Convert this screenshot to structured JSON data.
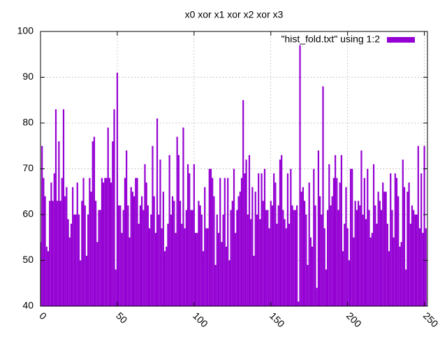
{
  "chart_data": {
    "type": "bar",
    "title": "x0 xor x1 xor x2 xor x3",
    "series": [
      {
        "name": "\"hist_fold.txt\" using 1:2",
        "color": "#9400d3",
        "values": [
          54,
          75,
          68,
          64,
          53,
          52,
          63,
          67,
          63,
          69,
          83,
          63,
          76,
          63,
          68,
          83,
          64,
          66,
          59,
          55,
          58,
          66,
          60,
          60,
          67,
          60,
          50,
          63,
          68,
          62,
          51,
          60,
          68,
          65,
          76,
          77,
          63,
          54,
          61,
          61,
          68,
          67,
          68,
          68,
          79,
          68,
          67,
          76,
          83,
          48,
          91,
          62,
          62,
          56,
          61,
          68,
          74,
          62,
          55,
          66,
          65,
          64,
          68,
          68,
          58,
          62,
          64,
          61,
          71,
          67,
          62,
          57,
          60,
          75,
          64,
          56,
          81,
          60,
          72,
          57,
          65,
          52,
          53,
          58,
          73,
          60,
          64,
          63,
          56,
          77,
          73,
          63,
          58,
          79,
          57,
          61,
          71,
          69,
          61,
          61,
          71,
          56,
          56,
          63,
          62,
          60,
          52,
          66,
          57,
          57,
          70,
          70,
          68,
          64,
          49,
          60,
          56,
          68,
          54,
          60,
          68,
          53,
          68,
          50,
          61,
          63,
          70,
          56,
          61,
          64,
          65,
          68,
          85,
          69,
          72,
          60,
          73,
          59,
          66,
          51,
          65,
          60,
          69,
          59,
          69,
          63,
          70,
          61,
          61,
          57,
          63,
          62,
          69,
          67,
          58,
          62,
          72,
          73,
          61,
          59,
          57,
          69,
          58,
          70,
          62,
          61,
          61,
          62,
          41,
          97,
          65,
          66,
          63,
          60,
          49,
          67,
          55,
          53,
          70,
          62,
          44,
          74,
          64,
          60,
          88,
          57,
          48,
          61,
          71,
          62,
          64,
          68,
          73,
          68,
          61,
          67,
          73,
          52,
          58,
          66,
          57,
          50,
          70,
          70,
          55,
          63,
          61,
          63,
          62,
          74,
          60,
          68,
          59,
          70,
          61,
          55,
          56,
          71,
          62,
          58,
          65,
          63,
          61,
          67,
          65,
          65,
          58,
          52,
          69,
          61,
          55,
          69,
          68,
          64,
          53,
          54,
          72,
          66,
          48,
          65,
          67,
          58,
          62,
          61,
          60,
          60,
          75,
          57,
          69,
          56,
          75,
          57
        ]
      }
    ],
    "xlim": [
      0,
      252
    ],
    "ylim": [
      40,
      100
    ],
    "xticks": [
      0,
      50,
      100,
      150,
      200,
      250
    ],
    "yticks": [
      40,
      50,
      60,
      70,
      80,
      90,
      100
    ],
    "grid": true,
    "legend": "top-right"
  }
}
